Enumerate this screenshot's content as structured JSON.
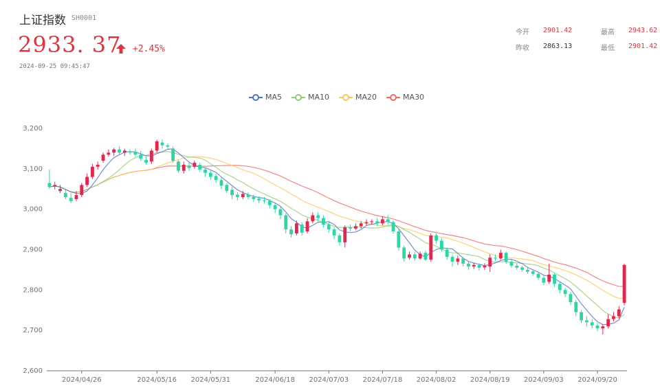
{
  "header": {
    "name": "上证指数",
    "code": "SH0001",
    "price": "2933. 37",
    "change": "+2.45%",
    "time": "2024-09-25 09:45:47"
  },
  "stats": {
    "open_label": "今开",
    "open_value": "2901.42",
    "high_label": "最高",
    "high_value": "2943.62",
    "prev_label": "昨收",
    "prev_value": "2863.13",
    "low_label": "最低",
    "low_value": "2901.42"
  },
  "colors": {
    "up": "#e0284f",
    "down": "#2dd6a6",
    "accent_red": "#d9353f"
  },
  "chart_data": {
    "type": "candlestick",
    "legend": [
      "MA5",
      "MA10",
      "MA20",
      "MA30"
    ],
    "series_colors": {
      "MA5": "#5470c6",
      "MA10": "#91cc75",
      "MA20": "#fac858",
      "MA30": "#ee6666"
    },
    "ylim": [
      2600,
      3200
    ],
    "yticks": [
      "2,600",
      "2,700",
      "2,800",
      "2,900",
      "3,000",
      "3,100",
      "3,200"
    ],
    "ytick_values": [
      2600,
      2700,
      2800,
      2900,
      3000,
      3100,
      3200
    ],
    "xticks": [
      "2024/04/26",
      "2024/05/16",
      "2024/05/31",
      "2024/06/18",
      "2024/07/03",
      "2024/07/18",
      "2024/08/02",
      "2024/08/19",
      "2024/09/03",
      "2024/09/20"
    ],
    "xtick_index": [
      6,
      20,
      30,
      42,
      52,
      62,
      72,
      82,
      92,
      102
    ],
    "candles": [
      [
        3065,
        3055,
        3098,
        3050
      ],
      [
        3056,
        3060,
        3068,
        3049
      ],
      [
        3045,
        3050,
        3060,
        3040
      ],
      [
        3040,
        3030,
        3048,
        3025
      ],
      [
        3028,
        3020,
        3040,
        3015
      ],
      [
        3025,
        3035,
        3045,
        3020
      ],
      [
        3035,
        3060,
        3065,
        3030
      ],
      [
        3060,
        3080,
        3088,
        3055
      ],
      [
        3080,
        3105,
        3112,
        3075
      ],
      [
        3105,
        3110,
        3118,
        3098
      ],
      [
        3120,
        3135,
        3140,
        3115
      ],
      [
        3135,
        3140,
        3148,
        3130
      ],
      [
        3140,
        3148,
        3152,
        3132
      ],
      [
        3148,
        3140,
        3155,
        3135
      ],
      [
        3140,
        3145,
        3150,
        3132
      ],
      [
        3143,
        3140,
        3148,
        3135
      ],
      [
        3142,
        3135,
        3150,
        3130
      ],
      [
        3135,
        3125,
        3145,
        3120
      ],
      [
        3122,
        3115,
        3130,
        3110
      ],
      [
        3118,
        3145,
        3150,
        3112
      ],
      [
        3145,
        3168,
        3172,
        3140
      ],
      [
        3165,
        3158,
        3172,
        3150
      ],
      [
        3158,
        3155,
        3162,
        3148
      ],
      [
        3150,
        3120,
        3155,
        3115
      ],
      [
        3118,
        3095,
        3122,
        3090
      ],
      [
        3095,
        3110,
        3118,
        3088
      ],
      [
        3108,
        3102,
        3115,
        3095
      ],
      [
        3105,
        3115,
        3120,
        3100
      ],
      [
        3110,
        3098,
        3115,
        3092
      ],
      [
        3098,
        3090,
        3102,
        3080
      ],
      [
        3090,
        3080,
        3095,
        3072
      ],
      [
        3082,
        3072,
        3088,
        3065
      ],
      [
        3072,
        3058,
        3078,
        3050
      ],
      [
        3060,
        3045,
        3065,
        3040
      ],
      [
        3048,
        3035,
        3055,
        3025
      ],
      [
        3036,
        3030,
        3042,
        3022
      ],
      [
        3030,
        3038,
        3045,
        3025
      ],
      [
        3036,
        3030,
        3042,
        3024
      ],
      [
        3030,
        3025,
        3036,
        3018
      ],
      [
        3026,
        3022,
        3032,
        3015
      ],
      [
        3022,
        3020,
        3030,
        3014
      ],
      [
        3020,
        3010,
        3025,
        3002
      ],
      [
        3010,
        3000,
        3015,
        2990
      ],
      [
        3000,
        2985,
        3005,
        2975
      ],
      [
        2985,
        2950,
        2990,
        2940
      ],
      [
        2950,
        2938,
        2958,
        2930
      ],
      [
        2940,
        2965,
        2972,
        2935
      ],
      [
        2962,
        2942,
        2968,
        2935
      ],
      [
        2945,
        2970,
        2978,
        2940
      ],
      [
        2970,
        2985,
        2992,
        2965
      ],
      [
        2985,
        2978,
        2992,
        2970
      ],
      [
        2978,
        2962,
        2985,
        2955
      ],
      [
        2962,
        2950,
        2968,
        2942
      ],
      [
        2950,
        2935,
        2955,
        2925
      ],
      [
        2935,
        2918,
        2940,
        2910
      ],
      [
        2918,
        2955,
        2960,
        2905
      ],
      [
        2955,
        2952,
        2962,
        2945
      ],
      [
        2952,
        2958,
        2965,
        2948
      ],
      [
        2958,
        2965,
        2970,
        2952
      ],
      [
        2965,
        2968,
        2975,
        2960
      ],
      [
        2968,
        2970,
        2975,
        2962
      ],
      [
        2970,
        2965,
        2978,
        2958
      ],
      [
        2965,
        2975,
        2982,
        2960
      ],
      [
        2975,
        2968,
        2985,
        2962
      ],
      [
        2968,
        2945,
        2972,
        2940
      ],
      [
        2945,
        2905,
        2950,
        2898
      ],
      [
        2905,
        2878,
        2910,
        2870
      ],
      [
        2880,
        2888,
        2895,
        2875
      ],
      [
        2888,
        2878,
        2895,
        2872
      ],
      [
        2878,
        2890,
        2895,
        2875
      ],
      [
        2892,
        2875,
        2898,
        2872
      ],
      [
        2875,
        2935,
        2940,
        2870
      ],
      [
        2935,
        2922,
        2940,
        2915
      ],
      [
        2922,
        2900,
        2928,
        2895
      ],
      [
        2900,
        2882,
        2905,
        2875
      ],
      [
        2882,
        2870,
        2888,
        2858
      ],
      [
        2870,
        2878,
        2885,
        2862
      ],
      [
        2878,
        2865,
        2882,
        2858
      ],
      [
        2865,
        2858,
        2870,
        2850
      ],
      [
        2858,
        2862,
        2868,
        2852
      ],
      [
        2862,
        2855,
        2866,
        2848
      ],
      [
        2856,
        2860,
        2866,
        2850
      ],
      [
        2858,
        2880,
        2888,
        2845
      ],
      [
        2880,
        2878,
        2888,
        2872
      ],
      [
        2878,
        2892,
        2900,
        2875
      ],
      [
        2892,
        2870,
        2895,
        2865
      ],
      [
        2870,
        2860,
        2875,
        2855
      ],
      [
        2860,
        2855,
        2865,
        2850
      ],
      [
        2856,
        2850,
        2860,
        2845
      ],
      [
        2850,
        2845,
        2855,
        2840
      ],
      [
        2846,
        2840,
        2850,
        2835
      ],
      [
        2840,
        2830,
        2845,
        2825
      ],
      [
        2830,
        2818,
        2835,
        2812
      ],
      [
        2820,
        2838,
        2865,
        2815
      ],
      [
        2838,
        2815,
        2842,
        2808
      ],
      [
        2815,
        2800,
        2820,
        2792
      ],
      [
        2800,
        2790,
        2805,
        2782
      ],
      [
        2790,
        2770,
        2795,
        2762
      ],
      [
        2770,
        2745,
        2775,
        2735
      ],
      [
        2745,
        2725,
        2750,
        2718
      ],
      [
        2725,
        2720,
        2735,
        2710
      ],
      [
        2720,
        2712,
        2728,
        2705
      ],
      [
        2712,
        2705,
        2718,
        2698
      ],
      [
        2705,
        2710,
        2715,
        2690
      ],
      [
        2710,
        2728,
        2740,
        2705
      ],
      [
        2728,
        2735,
        2745,
        2722
      ],
      [
        2735,
        2752,
        2760,
        2730
      ],
      [
        2768,
        2862,
        2865,
        2762
      ]
    ]
  }
}
